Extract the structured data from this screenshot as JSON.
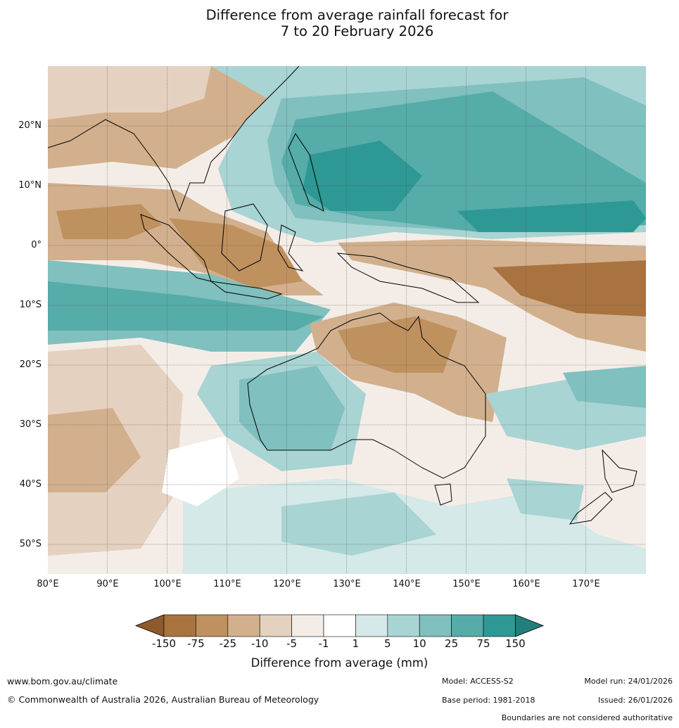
{
  "title": {
    "line1": "Difference from average rainfall forecast for",
    "line2": "7 to 20 February 2026"
  },
  "map": {
    "lat_labels": [
      "20°N",
      "10°N",
      "0°",
      "10°S",
      "20°S",
      "30°S",
      "40°S",
      "50°S"
    ],
    "lon_labels": [
      "80°E",
      "90°E",
      "100°E",
      "110°E",
      "120°E",
      "130°E",
      "140°E",
      "150°E",
      "160°E",
      "170°E"
    ],
    "lat_values": [
      20,
      10,
      0,
      -10,
      -20,
      -30,
      -40,
      -50
    ],
    "lon_values": [
      80,
      90,
      100,
      110,
      120,
      130,
      140,
      150,
      160,
      170
    ],
    "extent": {
      "lon_min": 80,
      "lon_max": 180,
      "lat_min": -55,
      "lat_max": 30
    }
  },
  "colorbar": {
    "label": "Difference from average (mm)",
    "ticks": [
      "-150",
      "-75",
      "-25",
      "-10",
      "-5",
      "-1",
      "1",
      "5",
      "10",
      "25",
      "75",
      "150"
    ],
    "colors": [
      "#a9733f",
      "#bf915f",
      "#d2b08d",
      "#e5d1bf",
      "#f4ede7",
      "#ffffff",
      "#d4e9e8",
      "#a8d4d3",
      "#80c0be",
      "#55aca9",
      "#2e9894"
    ],
    "under_color": "#8f5a2b",
    "over_color": "#237f7b"
  },
  "footer": {
    "url": "www.bom.gov.au/climate",
    "copyright": "© Commonwealth of Australia 2026, Australian Bureau of Meteorology",
    "model": "Model: ACCESS-S2",
    "base_period": "Base period: 1981-2018",
    "model_run": "Model run: 24/01/2026",
    "issued": "Issued: 26/01/2026",
    "disclaimer": "Boundaries are not considered authoritative"
  }
}
